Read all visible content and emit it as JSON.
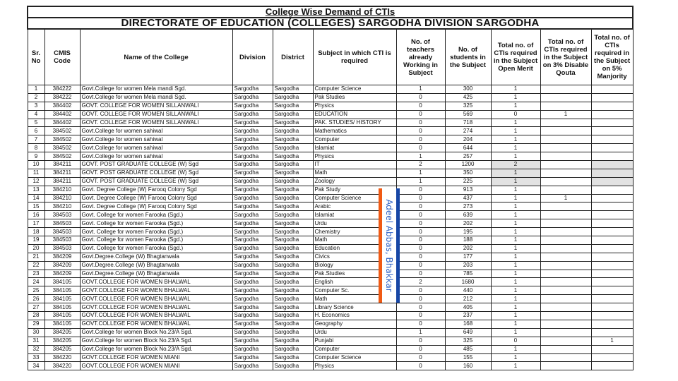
{
  "title": "College Wise Demand of CTIs",
  "subtitle": "DIRECTORATE OF EDUCATION (COLLEGES) SARGODHA DIVISION SARGODHA",
  "watermark": "Adeel Abbas, Bhakkar",
  "colors": {
    "ribbon_left": "#f05a14",
    "ribbon_right": "#1747a6",
    "highlight": "#e2e2e2"
  },
  "columns": [
    "Sr. No",
    "CMIS Code",
    "Name of the College",
    "Division",
    "District",
    "Subject in which CTI is required",
    "No. of teachers already Working in Subject",
    "No. of students in the Subject",
    "Total no. of CTIs required in the Subject Open Merit",
    "Total no. of CTIs required in the Subject on 3% Disable Qouta",
    "Total no. of CTIs required in the Subject on 5% Manjority"
  ],
  "rows": [
    [
      "1",
      "384222",
      "Govt.College for women Mela mandi Sgd.",
      "Sargodha",
      "Sargodha",
      "Computer Science",
      "1",
      "300",
      "1",
      "",
      ""
    ],
    [
      "2",
      "384222",
      "Govt.College for women Mela mandi Sgd.",
      "Sargodha",
      "Sargodha",
      "Pak Studies",
      "0",
      "425",
      "1",
      "",
      ""
    ],
    [
      "3",
      "384402",
      "GOVT. COLLEGE FOR WOMEN SILLANWALI",
      "Sargodha",
      "Sargodha",
      "Physics",
      "0",
      "325",
      "1",
      "",
      ""
    ],
    [
      "4",
      "384402",
      "GOVT. COLLEGE FOR WOMEN SILLANWALI",
      "Sargodha",
      "Sargodha",
      "EDUCATION",
      "0",
      "569",
      "0",
      "1",
      ""
    ],
    [
      "5",
      "384402",
      "GOVT. COLLEGE FOR WOMEN SILLANWALI",
      "Sargodha",
      "Sargodha",
      "PAK. STUDIES/ HISTORY",
      "0",
      "718",
      "1",
      "",
      ""
    ],
    [
      "6",
      "384502",
      "Govt.College for women sahiwal",
      "Sargodha",
      "Sargodha",
      "Mathematics",
      "0",
      "274",
      "1",
      "",
      ""
    ],
    [
      "7",
      "384502",
      "Govt.College for women sahiwal",
      "Sargodha",
      "Sargodha",
      "Computer",
      "0",
      "204",
      "1",
      "",
      ""
    ],
    [
      "8",
      "384502",
      "Govt.College for women sahiwal",
      "Sargodha",
      "Sargodha",
      "Islamiat",
      "0",
      "644",
      "1",
      "",
      ""
    ],
    [
      "9",
      "384502",
      "Govt.College for women sahiwal",
      "Sargodha",
      "Sargodha",
      "Physics",
      "1",
      "257",
      "1",
      "",
      ""
    ],
    [
      "10",
      "384211",
      "GOVT. POST GRADUATE COLLEGE (W) Sgd",
      "Sargodha",
      "Sargodha",
      "IT",
      "2",
      "1200",
      "2",
      "",
      ""
    ],
    [
      "11",
      "384211",
      "GOVT. POST GRADUATE COLLEGE (W) Sgd",
      "Sargodha",
      "Sargodha",
      "Math",
      "1",
      "350",
      "1",
      "",
      ""
    ],
    [
      "12",
      "384211",
      "GOVT. POST GRADUATE COLLEGE (W) Sgd",
      "Sargodha",
      "Sargodha",
      "Zoology",
      "1",
      "225",
      "1",
      "",
      ""
    ],
    [
      "13",
      "384210",
      "Govt. Degree College (W) Farooq Colony Sgd",
      "Sargodha",
      "Sargodha",
      "Pak Study",
      "0",
      "913",
      "1",
      "",
      ""
    ],
    [
      "14",
      "384210",
      "Govt. Degree College (W) Farooq Colony Sgd",
      "Sargodha",
      "Sargodha",
      "Computer Science",
      "0",
      "437",
      "1",
      "1",
      ""
    ],
    [
      "15",
      "384210",
      "Govt. Degree College (W) Farooq Colony Sgd",
      "Sargodha",
      "Sargodha",
      "Arabic",
      "0",
      "273",
      "1",
      "",
      ""
    ],
    [
      "16",
      "384503",
      "Govt. College for women Farooka (Sgd.)",
      "Sargodha",
      "Sargodha",
      "Islamiat",
      "0",
      "639",
      "1",
      "",
      ""
    ],
    [
      "17",
      "384503",
      "Govt. College for women Farooka (Sgd.)",
      "Sargodha",
      "Sargodha",
      "Urdu",
      "0",
      "202",
      "1",
      "",
      ""
    ],
    [
      "18",
      "384503",
      "Govt. College for women Farooka (Sgd.)",
      "Sargodha",
      "Sargodha",
      "Chemistry",
      "0",
      "195",
      "1",
      "",
      ""
    ],
    [
      "19",
      "384503",
      "Govt. College for women Farooka (Sgd.)",
      "Sargodha",
      "Sargodha",
      "Math",
      "0",
      "188",
      "1",
      "",
      ""
    ],
    [
      "20",
      "384503",
      "Govt. College for women Farooka (Sgd.)",
      "Sargodha",
      "Sargodha",
      "Education",
      "0",
      "202",
      "1",
      "",
      ""
    ],
    [
      "21",
      "384209",
      "Govt.Degree.College (W) Bhagtanwala",
      "Sargodha",
      "Sargodha",
      "Civics",
      "0",
      "177",
      "1",
      "",
      ""
    ],
    [
      "22",
      "384209",
      "Govt.Degree.College (W) Bhagtanwala",
      "Sargodha",
      "Sargodha",
      "Biology",
      "0",
      "203",
      "1",
      "",
      ""
    ],
    [
      "23",
      "384209",
      "Govt.Degree.College (W) Bhagtanwala",
      "Sargodha",
      "Sargodha",
      "Pak.Studies",
      "0",
      "785",
      "1",
      "",
      ""
    ],
    [
      "24",
      "384105",
      "GOVT.COLLEGE FOR WOMEN BHALWAL",
      "Sargodha",
      "Sargodha",
      "English",
      "2",
      "1680",
      "1",
      "",
      ""
    ],
    [
      "25",
      "384105",
      "GOVT.COLLEGE FOR WOMEN BHALWAL",
      "Sargodha",
      "Sargodha",
      "Computer Sc.",
      "0",
      "440",
      "1",
      "",
      ""
    ],
    [
      "26",
      "384105",
      "GOVT.COLLEGE FOR WOMEN BHALWAL",
      "Sargodha",
      "Sargodha",
      "Math",
      "0",
      "212",
      "1",
      "",
      ""
    ],
    [
      "27",
      "384105",
      "GOVT.COLLEGE FOR WOMEN BHALWAL",
      "Sargodha",
      "Sargodha",
      "Library Science",
      "0",
      "405",
      "1",
      "",
      ""
    ],
    [
      "28",
      "384105",
      "GOVT.COLLEGE FOR WOMEN BHALWAL",
      "Sargodha",
      "Sargodha",
      "H. Economics",
      "0",
      "237",
      "1",
      "",
      ""
    ],
    [
      "29",
      "384105",
      "GOVT.COLLEGE FOR WOMEN BHALWAL",
      "Sargodha",
      "Sargodha",
      "Geography",
      "0",
      "168",
      "1",
      "",
      ""
    ],
    [
      "30",
      "384205",
      "Govt.College for women Block No.23/A Sgd.",
      "Sargodha",
      "Sargodha",
      "Urdu",
      "1",
      "649",
      "1",
      "",
      ""
    ],
    [
      "31",
      "384205",
      "Govt.College for women Block No.23/A Sgd.",
      "Sargodha",
      "Sargodha",
      "Punjabi",
      "0",
      "325",
      "0",
      "",
      "1"
    ],
    [
      "32",
      "384205",
      "Govt.College for women Block No.23/A Sgd.",
      "Sargodha",
      "Sargodha",
      "Computer",
      "0",
      "485",
      "1",
      "",
      ""
    ],
    [
      "33",
      "384220",
      "GOVT.COLLEGE FOR WOMEN MIANI",
      "Sargodha",
      "Sargodha",
      "Computer Science",
      "0",
      "155",
      "1",
      "",
      ""
    ],
    [
      "34",
      "384220",
      "GOVT.COLLEGE FOR WOMEN MIANI",
      "Sargodha",
      "Sargodha",
      "Physics",
      "0",
      "160",
      "1",
      "",
      ""
    ]
  ]
}
